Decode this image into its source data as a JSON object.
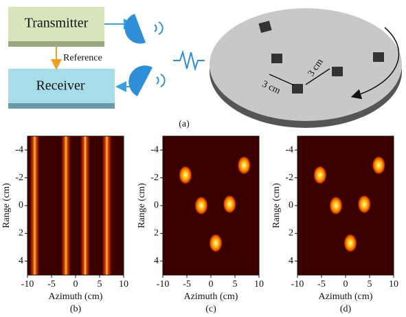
{
  "diagram": {
    "transmitter": "Transmitter",
    "receiver": "Receiver",
    "reference": "Reference",
    "distance_1": "3 cm",
    "distance_2": "3 cm",
    "caption": "(a)"
  },
  "chart_data": [
    {
      "type": "stripes",
      "caption": "(b)",
      "xlabel": "Azimuth (cm)",
      "ylabel": "Range (cm)",
      "xlim": [
        -10,
        10
      ],
      "ylim": [
        5,
        -5
      ],
      "xticks": [
        -10,
        -5,
        0,
        5,
        10
      ],
      "yticks": [
        -4,
        -2,
        0,
        2,
        4
      ],
      "x": [
        -8.5,
        -2,
        2,
        6.5
      ]
    },
    {
      "type": "spots",
      "caption": "(c)",
      "xlabel": "Azimuth (cm)",
      "ylabel": "Range (cm)",
      "xlim": [
        -10,
        10
      ],
      "ylim": [
        5,
        -5
      ],
      "xticks": [
        -10,
        -5,
        0,
        5,
        10
      ],
      "yticks": [
        -4,
        -2,
        0,
        2,
        4
      ],
      "x": [
        -5.3,
        6.9,
        -2,
        3.9,
        1
      ],
      "values": [
        -2.2,
        -2.9,
        0,
        -0.1,
        2.7
      ]
    },
    {
      "type": "spots",
      "caption": "(d)",
      "xlabel": "Azimuth (cm)",
      "ylabel": "Range (cm)",
      "xlim": [
        -10,
        10
      ],
      "ylim": [
        5,
        -5
      ],
      "xticks": [
        -10,
        -5,
        0,
        5,
        10
      ],
      "yticks": [
        -4,
        -2,
        0,
        2,
        4
      ],
      "x": [
        -5.3,
        6.9,
        -2,
        3.9,
        1
      ],
      "values": [
        -2.2,
        -2.9,
        0,
        -0.1,
        2.7
      ]
    }
  ]
}
